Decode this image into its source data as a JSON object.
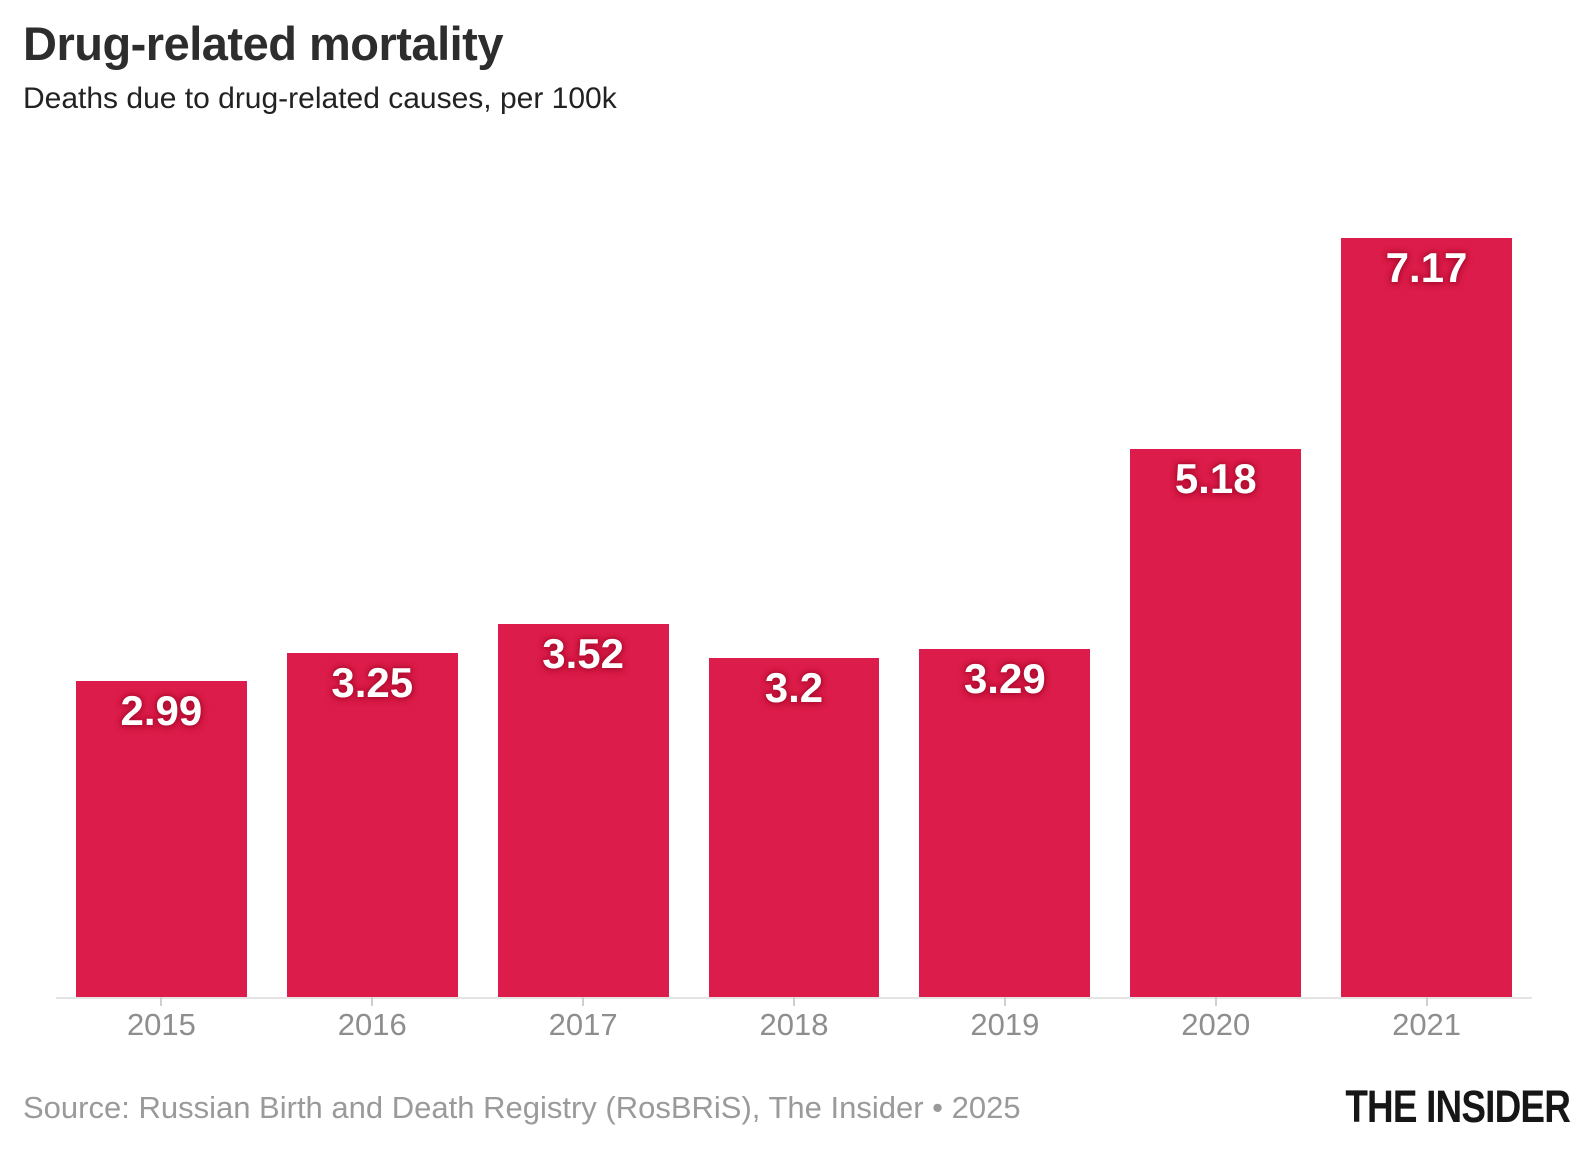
{
  "chart_data": {
    "type": "bar",
    "title": "Drug-related mortality",
    "subtitle": "Deaths due to drug-related causes, per 100k",
    "categories": [
      "2015",
      "2016",
      "2017",
      "2018",
      "2019",
      "2020",
      "2021"
    ],
    "values": [
      2.99,
      3.25,
      3.52,
      3.2,
      3.29,
      5.18,
      7.17
    ],
    "value_labels": [
      "2.99",
      "3.25",
      "3.52",
      "3.2",
      "3.29",
      "5.18",
      "7.17"
    ],
    "xlabel": "",
    "ylabel": "",
    "ylim": [
      0,
      7.17
    ],
    "grid": false,
    "legend": false,
    "bar_color": "#dc1c4a",
    "value_label_color": "#ffffff",
    "axis_line_color": "#e4e4e4",
    "tick_color": "#cfcfcf",
    "category_label_color": "#8e8e8e"
  },
  "footer": {
    "source": "Source: Russian Birth and Death Registry (RosBRiS), The Insider • 2025",
    "logo": "THE INSIDER"
  }
}
